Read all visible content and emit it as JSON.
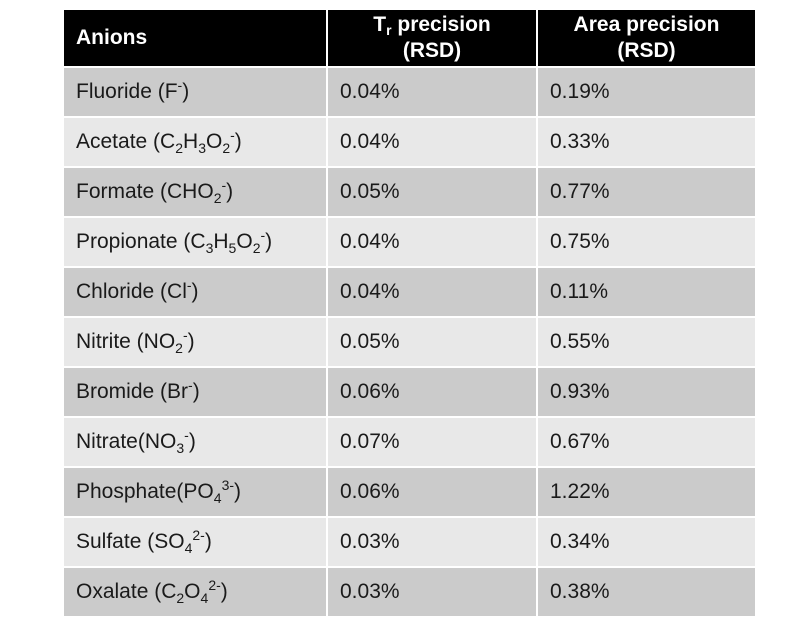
{
  "header": {
    "col1": "Anions",
    "col2_line1_main": "T",
    "col2_line1_sub": "r",
    "col2_line1_rest": " precision",
    "col2_line2": "(RSD)",
    "col3_line1": "Area precision",
    "col3_line2": "(RSD)"
  },
  "rows": [
    {
      "anion": [
        {
          "t": "Fluoride (F"
        },
        {
          "sup": "-"
        },
        {
          "t": ")"
        }
      ],
      "tr": "0.04%",
      "area": "0.19%"
    },
    {
      "anion": [
        {
          "t": "Acetate (C"
        },
        {
          "sub": "2"
        },
        {
          "t": "H"
        },
        {
          "sub": "3"
        },
        {
          "t": "O"
        },
        {
          "sub": "2"
        },
        {
          "sup": "-"
        },
        {
          "t": ")"
        }
      ],
      "tr": "0.04%",
      "area": "0.33%"
    },
    {
      "anion": [
        {
          "t": "Formate (CHO"
        },
        {
          "sub": "2"
        },
        {
          "sup": "-"
        },
        {
          "t": ")"
        }
      ],
      "tr": "0.05%",
      "area": "0.77%"
    },
    {
      "anion": [
        {
          "t": "Propionate (C"
        },
        {
          "sub": "3"
        },
        {
          "t": "H"
        },
        {
          "sub": "5"
        },
        {
          "t": "O"
        },
        {
          "sub": "2"
        },
        {
          "sup": "-"
        },
        {
          "t": ")"
        }
      ],
      "tr": "0.04%",
      "area": "0.75%"
    },
    {
      "anion": [
        {
          "t": "Chloride (Cl"
        },
        {
          "sup": "-"
        },
        {
          "t": ")"
        }
      ],
      "tr": "0.04%",
      "area": "0.11%"
    },
    {
      "anion": [
        {
          "t": "Nitrite (NO"
        },
        {
          "sub": "2"
        },
        {
          "sup": "-"
        },
        {
          "t": ")"
        }
      ],
      "tr": "0.05%",
      "area": "0.55%"
    },
    {
      "anion": [
        {
          "t": "Bromide (Br"
        },
        {
          "sup": "-"
        },
        {
          "t": ")"
        }
      ],
      "tr": "0.06%",
      "area": "0.93%"
    },
    {
      "anion": [
        {
          "t": "Nitrate(NO"
        },
        {
          "sub": "3"
        },
        {
          "sup": "-"
        },
        {
          "t": ")"
        }
      ],
      "tr": "0.07%",
      "area": "0.67%"
    },
    {
      "anion": [
        {
          "t": "Phosphate(PO"
        },
        {
          "sub": "4"
        },
        {
          "sup": "3-"
        },
        {
          "t": ")"
        }
      ],
      "tr": "0.06%",
      "area": "1.22%"
    },
    {
      "anion": [
        {
          "t": "Sulfate (SO"
        },
        {
          "sub": "4"
        },
        {
          "sup": "2-"
        },
        {
          "t": ")"
        }
      ],
      "tr": "0.03%",
      "area": "0.34%"
    },
    {
      "anion": [
        {
          "t": "Oxalate (C"
        },
        {
          "sub": "2"
        },
        {
          "t": "O"
        },
        {
          "sub": "4"
        },
        {
          "sup": "2-"
        },
        {
          "t": ")"
        }
      ],
      "tr": "0.03%",
      "area": "0.38%"
    }
  ]
}
